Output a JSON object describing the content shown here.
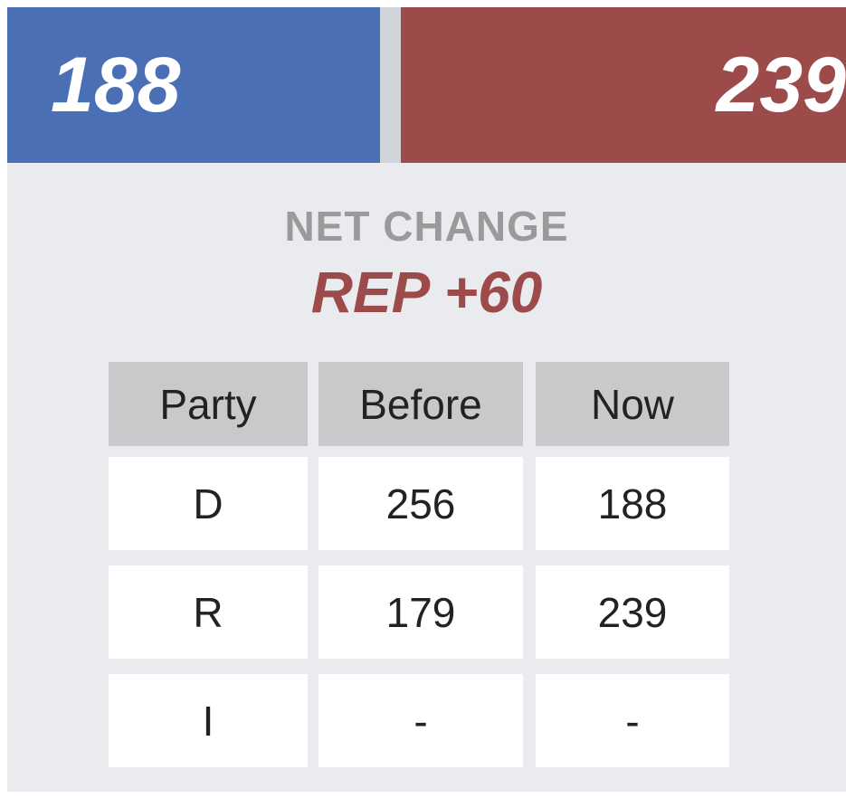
{
  "scoreboard": {
    "dem": 188,
    "rep": 239
  },
  "net_change": {
    "label": "NET CHANGE",
    "value": "REP +60"
  },
  "table": {
    "header": [
      "Party",
      "Before",
      "Now"
    ],
    "rows": [
      [
        "D",
        256,
        188
      ],
      [
        "R",
        179,
        239
      ],
      [
        "I",
        "-",
        "-"
      ]
    ]
  }
}
